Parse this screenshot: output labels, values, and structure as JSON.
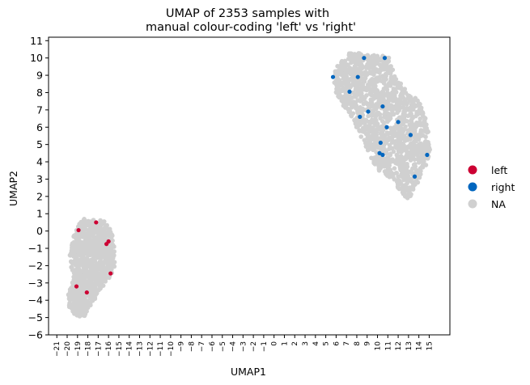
{
  "chart_data": {
    "type": "scatter",
    "title_lines": [
      "UMAP of 2353 samples with",
      "manual colour-coding 'left' vs 'right'"
    ],
    "xlabel": "UMAP1",
    "ylabel": "UMAP2",
    "xlim": [
      -21.8,
      17
    ],
    "ylim": [
      -6,
      11.2
    ],
    "xticks": [
      -21,
      -20,
      -19,
      -18,
      -17,
      -16,
      -15,
      -14,
      -13,
      -12,
      -11,
      -10,
      -9,
      -8,
      -7,
      -6,
      -5,
      -4,
      -3,
      -2,
      -1,
      0,
      1,
      2,
      3,
      4,
      5,
      6,
      7,
      8,
      9,
      10,
      11,
      12,
      13,
      14,
      15
    ],
    "yticks": [
      -6,
      -5,
      -4,
      -3,
      -2,
      -1,
      0,
      1,
      2,
      3,
      4,
      5,
      6,
      7,
      8,
      9,
      10,
      11
    ],
    "xtick_labels": [
      "−21",
      "−20",
      "−19",
      "−18",
      "−17",
      "−16",
      "−15",
      "−14",
      "−13",
      "−12",
      "−11",
      "−10",
      "−9",
      "−8",
      "−7",
      "−6",
      "−5",
      "−4",
      "−3",
      "−2",
      "−1",
      "0",
      "1",
      "2",
      "3",
      "4",
      "5",
      "6",
      "7",
      "8",
      "9",
      "10",
      "11",
      "12",
      "13",
      "14",
      "15"
    ],
    "ytick_labels": [
      "−6",
      "−5",
      "−4",
      "−3",
      "−2",
      "−1",
      "0",
      "1",
      "2",
      "3",
      "4",
      "5",
      "6",
      "7",
      "8",
      "9",
      "10",
      "11"
    ],
    "legend_position": "right",
    "grid": false,
    "series": [
      {
        "name": "left",
        "color": "#cc0033",
        "points": [
          [
            -18.9,
            0.05
          ],
          [
            -17.2,
            0.5
          ],
          [
            -16.0,
            -0.6
          ],
          [
            -16.2,
            -0.75
          ],
          [
            -15.8,
            -2.45
          ],
          [
            -19.1,
            -3.2
          ],
          [
            -18.1,
            -3.55
          ]
        ]
      },
      {
        "name": "right",
        "color": "#0066bf",
        "points": [
          [
            5.7,
            8.9
          ],
          [
            8.7,
            10.0
          ],
          [
            10.7,
            10.0
          ],
          [
            8.1,
            8.9
          ],
          [
            7.3,
            8.05
          ],
          [
            9.1,
            6.9
          ],
          [
            10.5,
            7.2
          ],
          [
            8.3,
            6.6
          ],
          [
            10.9,
            6.0
          ],
          [
            12.0,
            6.3
          ],
          [
            13.2,
            5.55
          ],
          [
            10.3,
            5.1
          ],
          [
            10.2,
            4.5
          ],
          [
            10.5,
            4.4
          ],
          [
            14.8,
            4.4
          ],
          [
            13.6,
            3.15
          ]
        ]
      },
      {
        "name": "NA",
        "color": "#d0d0d0",
        "clusters": [
          {
            "points": 1400,
            "outline": [
              [
                7.2,
                10.3
              ],
              [
                9.4,
                10.3
              ],
              [
                11.2,
                10.0
              ],
              [
                11.6,
                9.0
              ],
              [
                12.8,
                8.2
              ],
              [
                14.0,
                7.5
              ],
              [
                14.6,
                6.6
              ],
              [
                15.0,
                5.5
              ],
              [
                15.1,
                4.3
              ],
              [
                14.2,
                3.2
              ],
              [
                13.6,
                2.4
              ],
              [
                13.0,
                1.8
              ],
              [
                12.2,
                2.3
              ],
              [
                11.2,
                3.0
              ],
              [
                9.8,
                3.6
              ],
              [
                9.2,
                4.4
              ],
              [
                8.3,
                5.6
              ],
              [
                7.3,
                6.8
              ],
              [
                6.2,
                7.6
              ],
              [
                5.7,
                8.5
              ],
              [
                5.9,
                9.3
              ],
              [
                6.5,
                9.9
              ]
            ]
          },
          {
            "points": 950,
            "outline": [
              [
                -18.5,
                0.7
              ],
              [
                -16.5,
                0.6
              ],
              [
                -15.7,
                0.1
              ],
              [
                -15.4,
                -1.2
              ],
              [
                -15.4,
                -2.1
              ],
              [
                -16.0,
                -2.8
              ],
              [
                -16.8,
                -3.4
              ],
              [
                -17.6,
                -4.2
              ],
              [
                -18.2,
                -4.9
              ],
              [
                -19.0,
                -5.0
              ],
              [
                -19.8,
                -4.5
              ],
              [
                -19.9,
                -3.6
              ],
              [
                -19.4,
                -2.7
              ],
              [
                -19.8,
                -1.6
              ],
              [
                -19.5,
                -0.5
              ],
              [
                -19.0,
                0.3
              ]
            ]
          }
        ]
      }
    ]
  }
}
